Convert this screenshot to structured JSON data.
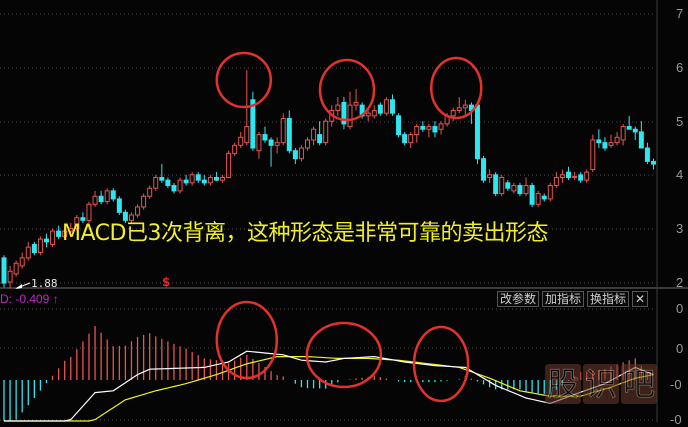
{
  "chart_data": [
    {
      "type": "candlestick",
      "panel": "price",
      "y_ticks": [
        "7",
        "6",
        "5",
        "4",
        "3",
        "2"
      ],
      "ylim": [
        2,
        7
      ],
      "grid": true,
      "colors": {
        "up": "#e8544e",
        "down": "#2ee6f0",
        "background": "#050505"
      },
      "candles_ohlc": [
        [
          2.45,
          2.5,
          1.9,
          1.98
        ],
        [
          2.0,
          2.3,
          1.88,
          2.2
        ],
        [
          2.15,
          2.4,
          2.1,
          2.35
        ],
        [
          2.3,
          2.55,
          2.25,
          2.45
        ],
        [
          2.45,
          2.75,
          2.4,
          2.65
        ],
        [
          2.7,
          2.75,
          2.5,
          2.55
        ],
        [
          2.55,
          2.85,
          2.5,
          2.8
        ],
        [
          2.8,
          2.9,
          2.65,
          2.75
        ],
        [
          2.7,
          3.0,
          2.65,
          2.95
        ],
        [
          2.95,
          3.05,
          2.8,
          2.85
        ],
        [
          2.85,
          3.0,
          2.8,
          2.95
        ],
        [
          2.95,
          3.1,
          2.9,
          3.0
        ],
        [
          3.0,
          3.25,
          2.95,
          3.2
        ],
        [
          3.2,
          3.3,
          3.1,
          3.15
        ],
        [
          3.15,
          3.5,
          3.1,
          3.45
        ],
        [
          3.45,
          3.7,
          3.4,
          3.6
        ],
        [
          3.6,
          3.7,
          3.45,
          3.5
        ],
        [
          3.5,
          3.75,
          3.45,
          3.7
        ],
        [
          3.7,
          3.75,
          3.5,
          3.55
        ],
        [
          3.55,
          3.6,
          3.25,
          3.3
        ],
        [
          3.3,
          3.35,
          3.1,
          3.15
        ],
        [
          3.15,
          3.3,
          3.1,
          3.25
        ],
        [
          3.25,
          3.45,
          3.2,
          3.4
        ],
        [
          3.4,
          3.65,
          3.35,
          3.6
        ],
        [
          3.6,
          3.8,
          3.55,
          3.75
        ],
        [
          3.75,
          4.0,
          3.7,
          3.95
        ],
        [
          3.95,
          4.2,
          3.85,
          3.9
        ],
        [
          3.9,
          3.95,
          3.75,
          3.8
        ],
        [
          3.8,
          3.85,
          3.65,
          3.7
        ],
        [
          3.7,
          3.95,
          3.65,
          3.9
        ],
        [
          3.9,
          4.0,
          3.8,
          3.85
        ],
        [
          3.85,
          4.05,
          3.8,
          4.0
        ],
        [
          4.0,
          4.05,
          3.85,
          3.9
        ],
        [
          3.9,
          4.0,
          3.8,
          3.85
        ],
        [
          3.85,
          4.0,
          3.8,
          3.95
        ],
        [
          3.95,
          4.05,
          3.88,
          3.9
        ],
        [
          3.9,
          4.0,
          3.85,
          3.95
        ],
        [
          3.95,
          4.45,
          3.95,
          4.4
        ],
        [
          4.4,
          4.6,
          4.35,
          4.55
        ],
        [
          4.55,
          4.8,
          4.5,
          4.7
        ],
        [
          4.6,
          5.95,
          4.55,
          4.9
        ],
        [
          5.4,
          5.55,
          4.45,
          4.5
        ],
        [
          4.45,
          4.8,
          4.3,
          4.75
        ],
        [
          4.75,
          4.9,
          4.6,
          4.65
        ],
        [
          4.65,
          4.7,
          4.15,
          4.55
        ],
        [
          4.55,
          4.7,
          4.4,
          4.6
        ],
        [
          4.6,
          5.15,
          4.55,
          5.05
        ],
        [
          5.05,
          5.2,
          4.4,
          4.45
        ],
        [
          4.45,
          4.5,
          4.2,
          4.3
        ],
        [
          4.3,
          4.55,
          4.25,
          4.5
        ],
        [
          4.5,
          4.7,
          4.45,
          4.65
        ],
        [
          4.65,
          4.9,
          4.55,
          4.85
        ],
        [
          4.75,
          5.0,
          4.55,
          4.6
        ],
        [
          4.6,
          5.05,
          4.55,
          5.0
        ],
        [
          5.0,
          5.3,
          4.9,
          5.2
        ],
        [
          5.2,
          5.45,
          5.1,
          5.3
        ],
        [
          5.35,
          5.45,
          4.85,
          4.95
        ],
        [
          4.9,
          5.55,
          4.85,
          5.3
        ],
        [
          5.3,
          5.6,
          5.2,
          5.35
        ],
        [
          5.3,
          5.35,
          5.05,
          5.1
        ],
        [
          5.1,
          5.2,
          5.0,
          5.15
        ],
        [
          5.1,
          5.3,
          5.05,
          5.2
        ],
        [
          5.3,
          5.35,
          5.1,
          5.15
        ],
        [
          5.15,
          5.45,
          5.1,
          5.4
        ],
        [
          5.4,
          5.5,
          5.1,
          5.15
        ],
        [
          5.1,
          5.15,
          4.7,
          4.75
        ],
        [
          4.75,
          4.8,
          4.55,
          4.6
        ],
        [
          4.6,
          4.8,
          4.5,
          4.75
        ],
        [
          4.75,
          4.95,
          4.6,
          4.9
        ],
        [
          4.9,
          5.0,
          4.8,
          4.85
        ],
        [
          4.85,
          4.95,
          4.7,
          4.9
        ],
        [
          4.9,
          5.0,
          4.7,
          4.8
        ],
        [
          4.85,
          5.0,
          4.75,
          4.95
        ],
        [
          4.95,
          5.15,
          4.9,
          5.1
        ],
        [
          5.1,
          5.25,
          5.0,
          5.2
        ],
        [
          5.2,
          5.45,
          5.15,
          5.25
        ],
        [
          5.25,
          5.4,
          5.1,
          5.3
        ],
        [
          5.3,
          5.35,
          4.95,
          5.2
        ],
        [
          5.3,
          5.35,
          4.2,
          4.3
        ],
        [
          4.3,
          4.35,
          3.85,
          3.9
        ],
        [
          3.95,
          4.1,
          3.85,
          4.0
        ],
        [
          4.0,
          4.05,
          3.6,
          3.65
        ],
        [
          3.65,
          4.0,
          3.6,
          3.95
        ],
        [
          3.85,
          3.9,
          3.7,
          3.75
        ],
        [
          3.7,
          3.85,
          3.65,
          3.8
        ],
        [
          3.8,
          3.85,
          3.6,
          3.65
        ],
        [
          3.65,
          3.95,
          3.6,
          3.8
        ],
        [
          3.8,
          3.85,
          3.4,
          3.45
        ],
        [
          3.45,
          3.7,
          3.4,
          3.65
        ],
        [
          3.6,
          3.65,
          3.5,
          3.55
        ],
        [
          3.55,
          3.85,
          3.5,
          3.8
        ],
        [
          3.8,
          4.05,
          3.75,
          3.95
        ],
        [
          3.95,
          4.1,
          3.85,
          4.0
        ],
        [
          4.05,
          4.15,
          3.9,
          3.95
        ],
        [
          3.95,
          4.05,
          3.9,
          3.97
        ],
        [
          4.0,
          4.05,
          3.85,
          3.9
        ],
        [
          3.9,
          4.1,
          3.85,
          4.05
        ],
        [
          4.1,
          4.75,
          4.05,
          4.65
        ],
        [
          4.65,
          4.85,
          4.5,
          4.6
        ],
        [
          4.6,
          4.7,
          4.45,
          4.5
        ],
        [
          4.55,
          4.75,
          4.5,
          4.6
        ],
        [
          4.6,
          4.8,
          4.55,
          4.7
        ],
        [
          4.65,
          4.95,
          4.55,
          4.9
        ],
        [
          4.9,
          5.1,
          4.85,
          4.85
        ],
        [
          4.85,
          4.9,
          4.65,
          4.8
        ],
        [
          4.8,
          5.0,
          4.5,
          4.5
        ],
        [
          4.5,
          4.6,
          4.2,
          4.25
        ],
        [
          4.25,
          4.3,
          4.1,
          4.2
        ]
      ],
      "low_marker": "1.88",
      "signal_marker": "$",
      "annotation": "MACD已3次背离，这种形态是非常可靠的卖出形态",
      "highlight_circles_at_candles": [
        40,
        57,
        75
      ]
    },
    {
      "type": "line",
      "panel": "MACD",
      "y_ticks": [
        "0",
        "0",
        "-0",
        "-0"
      ],
      "readout": "D: -0.409",
      "readout_arrow": "↑",
      "colors": {
        "dif": "#ffffff",
        "dea": "#f0f020",
        "hist_pos": "#e8544e",
        "hist_neg": "#2ee6f0",
        "readout": "#c424c8"
      },
      "dif_points": [
        [
          0,
          -0.45
        ],
        [
          5,
          -0.38
        ],
        [
          11,
          -0.22
        ],
        [
          15,
          -0.07
        ],
        [
          18,
          -0.06
        ],
        [
          22,
          0.03
        ],
        [
          24,
          0.06
        ],
        [
          33,
          0.07
        ],
        [
          37,
          0.1
        ],
        [
          40,
          0.16
        ],
        [
          43,
          0.15
        ],
        [
          46,
          0.14
        ],
        [
          49,
          0.11
        ],
        [
          53,
          0.1
        ],
        [
          56,
          0.12
        ],
        [
          61,
          0.13
        ],
        [
          66,
          0.1
        ],
        [
          71,
          0.08
        ],
        [
          76,
          0.07
        ],
        [
          81,
          -0.03
        ],
        [
          86,
          -0.1
        ],
        [
          90,
          -0.13
        ],
        [
          94,
          -0.08
        ],
        [
          99,
          -0.02
        ],
        [
          104,
          0.07
        ],
        [
          107,
          0.03
        ]
      ],
      "dea_points": [
        [
          0,
          -0.3
        ],
        [
          5,
          -0.33
        ],
        [
          10,
          -0.3
        ],
        [
          15,
          -0.22
        ],
        [
          20,
          -0.11
        ],
        [
          25,
          -0.06
        ],
        [
          30,
          -0.02
        ],
        [
          35,
          0.03
        ],
        [
          40,
          0.09
        ],
        [
          45,
          0.13
        ],
        [
          50,
          0.13
        ],
        [
          55,
          0.12
        ],
        [
          60,
          0.12
        ],
        [
          65,
          0.11
        ],
        [
          70,
          0.09
        ],
        [
          75,
          0.07
        ],
        [
          80,
          0.01
        ],
        [
          85,
          -0.06
        ],
        [
          90,
          -0.09
        ],
        [
          95,
          -0.09
        ],
        [
          100,
          -0.04
        ],
        [
          104,
          0.01
        ],
        [
          107,
          0.03
        ]
      ],
      "highlight_circles_at_candles": [
        40,
        56,
        72
      ]
    }
  ],
  "toolbar": {
    "modify_params": "改参数",
    "add_indicator": "加指标",
    "switch_indicator": "换指标",
    "close": "✕"
  },
  "watermark": [
    "股",
    "识",
    "吧"
  ]
}
